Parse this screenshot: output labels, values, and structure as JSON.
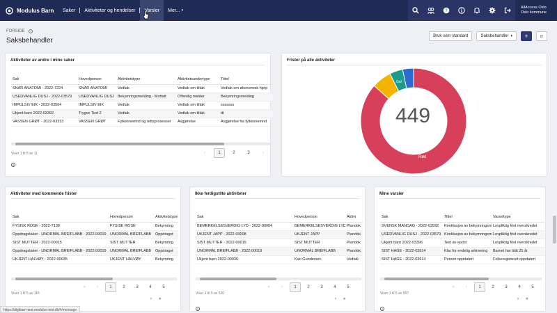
{
  "app": {
    "brand": "Modulus Barn",
    "nav": [
      "Saker",
      "Aktiviteter og hendelser",
      "Varsler",
      "Mer..."
    ],
    "user_line1": "AllAccess Oslo",
    "user_line2": "Oslo kommune"
  },
  "page": {
    "crumb": "FORSIDE",
    "title": "Saksbehandler",
    "btn_standard": "Bruk som standard",
    "btn_role": "Saksbehandler"
  },
  "card1": {
    "title": "Aktiviteter av andre i mine saker",
    "headers": [
      "Sak",
      "Hovedperson",
      "Aktivitetstype",
      "Aktivitetsundertype",
      "Tittel"
    ],
    "rows": [
      [
        "SNAR ANATOMI - 2022-7224",
        "SNAR ANATOMI",
        "Vedtak",
        "Vedtak om tiltak",
        "Vedtak om økonomisk hjelp"
      ],
      [
        "USEDVANLIG DUSJ - 2022-03579",
        "USEDVANLIG DUSJ",
        "Bekymringsmelding - Mottatt",
        "Offentlig melder",
        "Bekymringsmelding"
      ],
      [
        "IMPULSIV EIK - 2022-03564",
        "IMPULSIV EIK",
        "Vedtak",
        "Vedtak om tiltak",
        "sssssss"
      ],
      [
        "Ukjent barn 2022-03392",
        "Trygve Test 2",
        "Vedtak",
        "Vedtak om tiltak",
        "ttt"
      ],
      [
        "VASSEN GRØT - 2022-03333",
        "VASSEN GRØT",
        "Fylkesnemnd og rettsprosesser",
        "Avgjørelse",
        "Avgjørelse fra fylkesnemnd"
      ]
    ],
    "info": "Viser 1 til 5 av 11",
    "pages": [
      "‹",
      "1",
      "2",
      "3",
      "›"
    ]
  },
  "card2": {
    "title": "Frister på alle aktiviteter",
    "total": "449",
    "label_red": "Rød",
    "label_yellow": "Gul"
  },
  "chart_data": {
    "type": "pie",
    "title": "Frister på alle aktiviteter",
    "categories": [
      "Rød",
      "Gul",
      "Grønn",
      "Blå"
    ],
    "values": [
      389,
      27,
      18,
      15
    ],
    "colors": [
      "#d6405a",
      "#f4b400",
      "#1a9b8c",
      "#2c6cd1"
    ],
    "center_label": "449"
  },
  "card3": {
    "title": "Aktiviteter med kommende frister",
    "headers": [
      "Sak",
      "Hovedperson",
      "Aktivitetstype"
    ],
    "rows": [
      [
        "FYSISK ROSE - 2022-7138",
        "FYSISK ROSE",
        "Bekymring"
      ],
      [
        "Oppdragstaker - UNORMAL BREIFLABB - 2022-00019",
        "UNORMAL BREIFLABB",
        "Oppdragst"
      ],
      [
        "SIST MUTTER - 2022-00015",
        "SIST MUTTER",
        "Bekymring"
      ],
      [
        "Oppdragstaker - UNORMAL BREIFLABB - 2022-00019",
        "UNORMAL BREIFLABB",
        "Oppdragst"
      ],
      [
        "UKJENT HALVØY - 2022-00035",
        "UKJENT HALVØY",
        "Bekymring"
      ]
    ],
    "info": "Viser 1 til 5 av 118",
    "pages": [
      "«",
      "‹",
      "1",
      "2",
      "3",
      "4",
      "5"
    ],
    "pages2": [
      "›",
      "»"
    ]
  },
  "card4": {
    "title": "Ikke ferdigstilte aktiviteter",
    "headers": [
      "Sak",
      "Hovedperson",
      "Aktivi"
    ],
    "rows": [
      [
        "BEMERKELSESVERDIG LYD - 2022-00004",
        "BEMERKELSESVERDIG LYD",
        "Plandok"
      ],
      [
        "UKJENT JAPP - 2022-00008",
        "UKJENT JAPP",
        "Plandok"
      ],
      [
        "SIST MUTTER - 2022-00015",
        "SIST MUTTER",
        "Plandok"
      ],
      [
        "UNORMAL BREIFLABB - 2022-00019",
        "UNORMAL BREIFLABB",
        "Plandok"
      ],
      [
        "Ukjent barn 2022-00036",
        "Kari Gundersen",
        "Vedtak"
      ]
    ],
    "info": "Viser 1 til 5 av 520",
    "pages": [
      "«",
      "‹",
      "1",
      "2",
      "3",
      "4",
      "5"
    ],
    "pages2": [
      "›",
      "»"
    ]
  },
  "card5": {
    "title": "Mine varsler",
    "headers": [
      "Sak",
      "Tittel",
      "Varseltype"
    ],
    "rows": [
      [
        "SVENSK MANDAG - 2022-03592",
        "Konklusjon av bekymringsm...",
        "Lovpliktig frist overskredet"
      ],
      [
        "USEDVANLIG DUSJ - 2022-03579",
        "Konklusjon av bekymringsm...",
        "Lovpliktig frist overskredet"
      ],
      [
        "Ukjent barn 2022-03396",
        "Test av epost",
        "Lovpliktig frist overskredet"
      ],
      [
        "SIST HAGE - 2022-03614",
        "Klar for endelig arkivering",
        "Barnet har blitt 25 år"
      ],
      [
        "SIST HAGE - 2022-03614",
        "Person oppdatert",
        "Folkeregisteret oppdatert"
      ]
    ],
    "info": "Viser 1 til 5 av 557",
    "pages": [
      "«",
      "‹",
      "1",
      "2",
      "3",
      "4",
      "5"
    ],
    "pages2": [
      "›",
      "»"
    ]
  },
  "statusbar": "https://digibarn-test.modulus-test.dk/#/message"
}
